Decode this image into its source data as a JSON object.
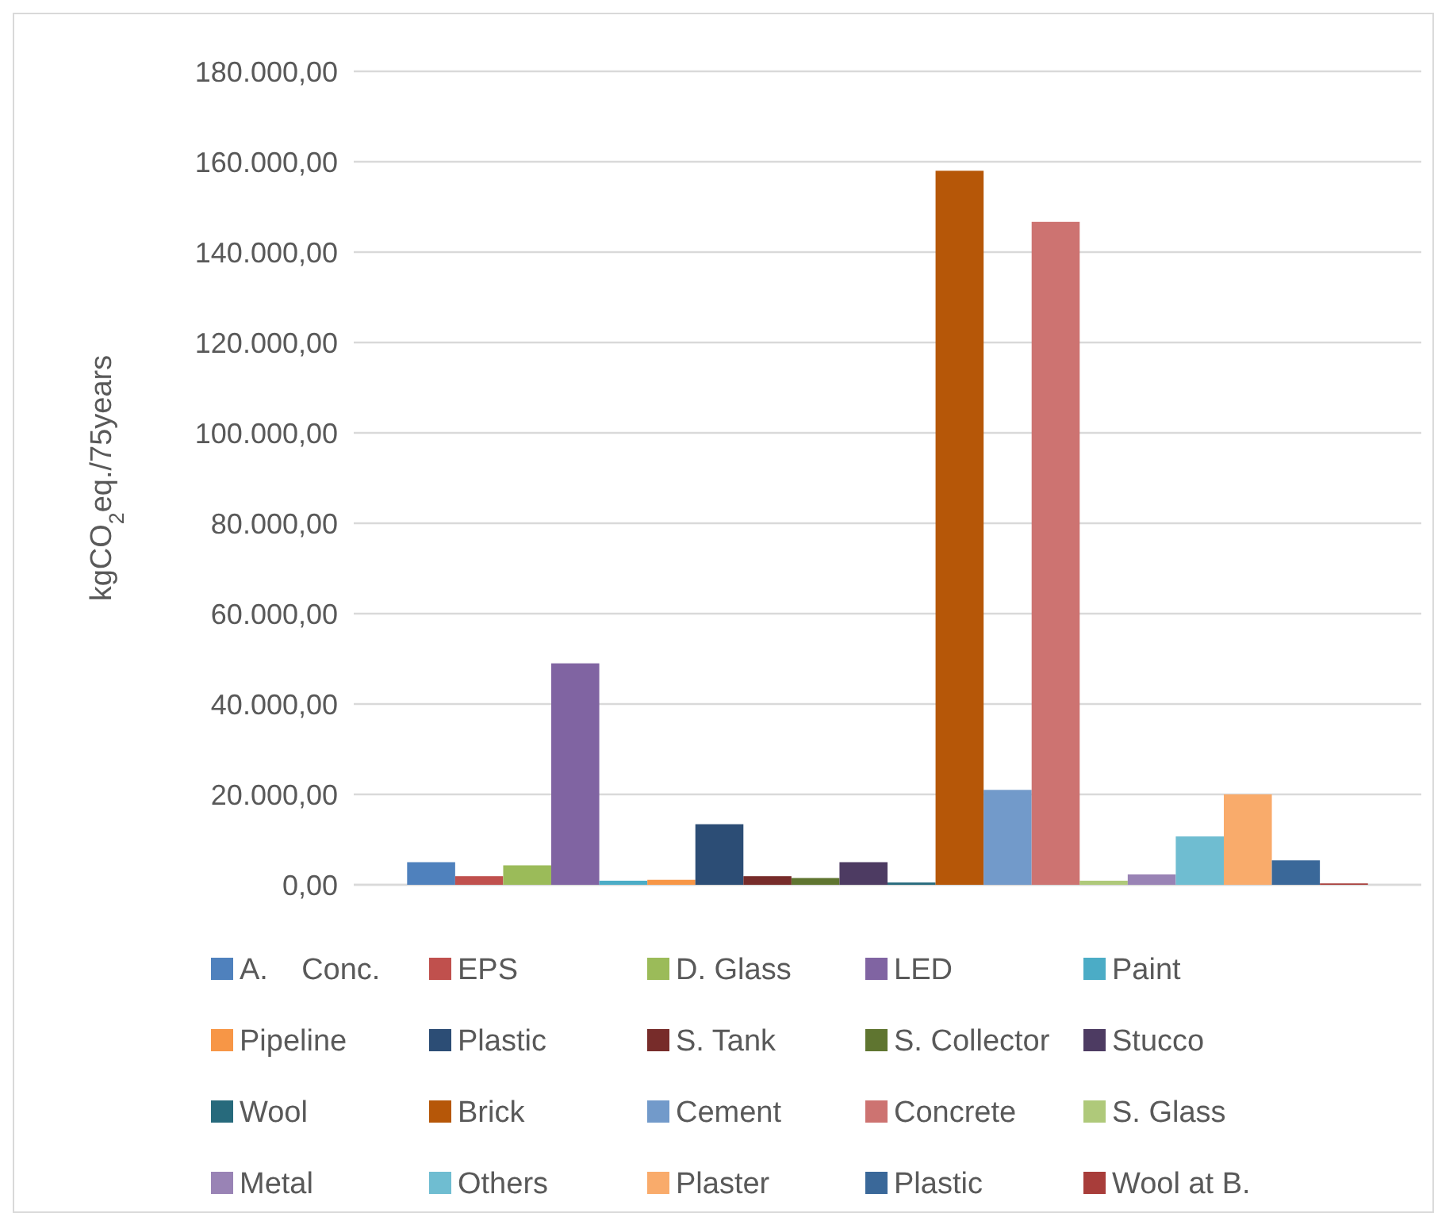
{
  "chart_data": {
    "type": "bar",
    "ylabel": "kgCO$_{2}$eq./75years",
    "categories": [
      null
    ],
    "ylim": [
      0,
      180000
    ],
    "yticks": [
      {
        "value": 0,
        "label": "0,00"
      },
      {
        "value": 20000,
        "label": "20.000,00"
      },
      {
        "value": 40000,
        "label": "40.000,00"
      },
      {
        "value": 60000,
        "label": "60.000,00"
      },
      {
        "value": 80000,
        "label": "80.000,00"
      },
      {
        "value": 100000,
        "label": "100.000,00"
      },
      {
        "value": 120000,
        "label": "120.000,00"
      },
      {
        "value": 140000,
        "label": "140.000,00"
      },
      {
        "value": 160000,
        "label": "160.000,00"
      },
      {
        "value": 180000,
        "label": "180.000,00"
      }
    ],
    "grid": "y",
    "legend": "bottom",
    "series": [
      {
        "name": "A.    Conc.",
        "color": "#4f81bd",
        "values": [
          5000
        ]
      },
      {
        "name": "EPS",
        "color": "#c0504d",
        "values": [
          1900
        ]
      },
      {
        "name": "D. Glass",
        "color": "#9bbb59",
        "values": [
          4300
        ]
      },
      {
        "name": "LED",
        "color": "#8064a2",
        "values": [
          49000
        ]
      },
      {
        "name": "Paint",
        "color": "#4bacc6",
        "values": [
          900
        ]
      },
      {
        "name": "Pipeline",
        "color": "#f79646",
        "values": [
          1100
        ]
      },
      {
        "name": "Plastic",
        "color": "#2c4d75",
        "values": [
          13400
        ]
      },
      {
        "name": "S. Tank",
        "color": "#772c2a",
        "values": [
          1900
        ]
      },
      {
        "name": "S. Collector",
        "color": "#5f7530",
        "values": [
          1500
        ]
      },
      {
        "name": "Stucco",
        "color": "#4d3b62",
        "values": [
          5000
        ]
      },
      {
        "name": "Wool",
        "color": "#276a7c",
        "values": [
          500
        ]
      },
      {
        "name": "Brick",
        "color": "#b65708",
        "values": [
          158000
        ]
      },
      {
        "name": "Cement",
        "color": "#729aca",
        "values": [
          21000
        ]
      },
      {
        "name": "Concrete",
        "color": "#cd7371",
        "values": [
          146700
        ]
      },
      {
        "name": "S. Glass",
        "color": "#afc97a",
        "values": [
          900
        ]
      },
      {
        "name": "Metal",
        "color": "#9983b5",
        "values": [
          2300
        ]
      },
      {
        "name": "Others",
        "color": "#6fbdd1",
        "values": [
          10700
        ]
      },
      {
        "name": "Plaster",
        "color": "#f9ab6b",
        "values": [
          20000
        ]
      },
      {
        "name": "Plastic",
        "color": "#3a6899",
        "values": [
          5400
        ]
      },
      {
        "name": "Wool at B.",
        "color": "#a83d3a",
        "values": [
          300
        ]
      }
    ]
  }
}
